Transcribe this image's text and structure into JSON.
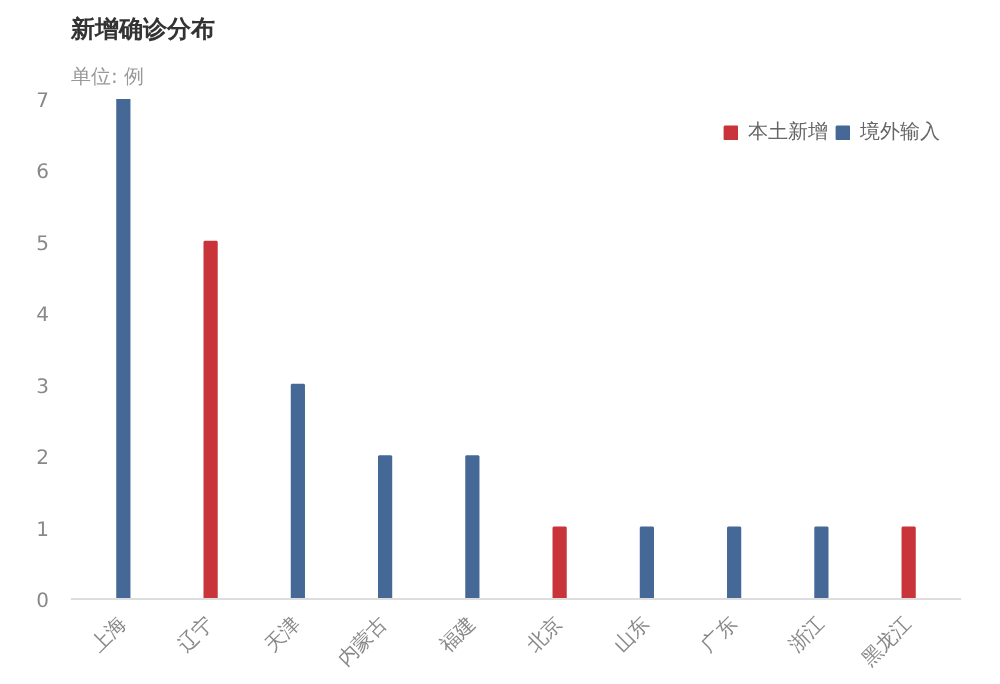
{
  "chart_data": {
    "type": "bar",
    "title": "新增确诊分布",
    "subtitle": "单位: 例",
    "stacked": true,
    "categories": [
      "上海",
      "辽宁",
      "天津",
      "内蒙古",
      "福建",
      "北京",
      "山东",
      "广东",
      "浙江",
      "黑龙江"
    ],
    "series": [
      {
        "name": "本土新增",
        "color": "#c8343a",
        "values": [
          null,
          5,
          null,
          null,
          null,
          1,
          null,
          null,
          null,
          1
        ]
      },
      {
        "name": "境外输入",
        "color": "#456896",
        "values": [
          7,
          null,
          3,
          2,
          2,
          null,
          1,
          1,
          1,
          null
        ]
      }
    ],
    "ylim": [
      0,
      7
    ],
    "yticks": [
      0,
      1,
      2,
      3,
      4,
      5,
      6,
      7
    ],
    "grid": false,
    "legend": "top right"
  }
}
